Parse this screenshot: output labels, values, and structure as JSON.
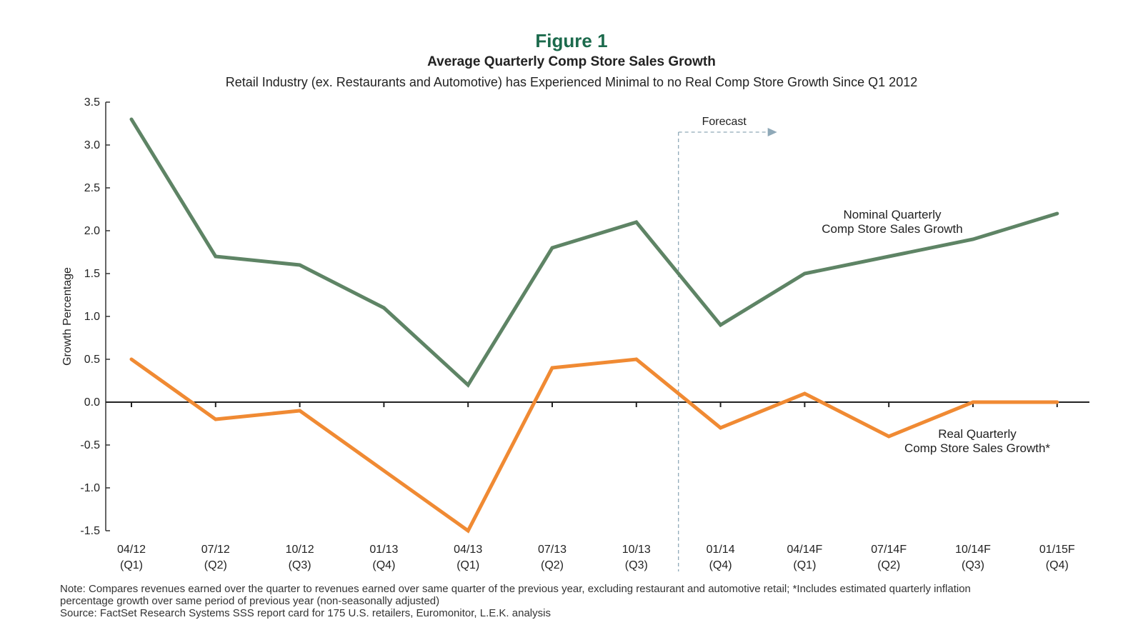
{
  "figure_label": "Figure 1",
  "chart_data": {
    "type": "line",
    "title": "Average Quarterly Comp Store Sales Growth",
    "subtitle": "Retail Industry (ex. Restaurants and Automotive) has Experienced Minimal to no Real Comp Store Growth Since Q1 2012",
    "xlabel": "",
    "ylabel": "Growth Percentage",
    "ylim": [
      -1.5,
      3.5
    ],
    "yticks": [
      "3.5",
      "3.0",
      "2.5",
      "2.0",
      "1.5",
      "1.0",
      "0.5",
      "0.0",
      "-0.5",
      "-1.0",
      "-1.5"
    ],
    "categories": [
      [
        "04/12",
        "(Q1)"
      ],
      [
        "07/12",
        "(Q2)"
      ],
      [
        "10/12",
        "(Q3)"
      ],
      [
        "01/13",
        "(Q4)"
      ],
      [
        "04/13",
        "(Q1)"
      ],
      [
        "07/13",
        "(Q2)"
      ],
      [
        "10/13",
        "(Q3)"
      ],
      [
        "01/14",
        "(Q4)"
      ],
      [
        "04/14F",
        "(Q1)"
      ],
      [
        "07/14F",
        "(Q2)"
      ],
      [
        "10/14F",
        "(Q3)"
      ],
      [
        "01/15F",
        "(Q4)"
      ]
    ],
    "series": [
      {
        "name": [
          "Nominal Quarterly",
          "Comp Store Sales Growth"
        ],
        "color": "#5e8465",
        "values": [
          3.3,
          1.7,
          1.6,
          1.1,
          0.2,
          1.8,
          2.1,
          0.9,
          1.5,
          1.7,
          1.9,
          2.2
        ]
      },
      {
        "name": [
          "Real Quarterly",
          "Comp Store Sales Growth*"
        ],
        "color": "#f08a33",
        "values": [
          0.5,
          -0.2,
          -0.1,
          -0.8,
          -1.5,
          0.4,
          0.5,
          -0.3,
          0.1,
          -0.4,
          0.0,
          0.0
        ]
      }
    ],
    "forecast": {
      "label": "Forecast",
      "starts_between": [
        "10/13",
        "01/14"
      ],
      "color": "#8fa9b8"
    },
    "grid": false
  },
  "notes": {
    "line1": "Note: Compares revenues earned over the quarter to revenues earned over same quarter of the previous year, excluding restaurant and automotive retail; *Includes estimated quarterly inflation",
    "line2": "percentage growth over same period of previous year (non-seasonally adjusted)",
    "line3": "Source: FactSet Research Systems SSS report card for 175 U.S. retailers, Euromonitor, L.E.K. analysis"
  }
}
